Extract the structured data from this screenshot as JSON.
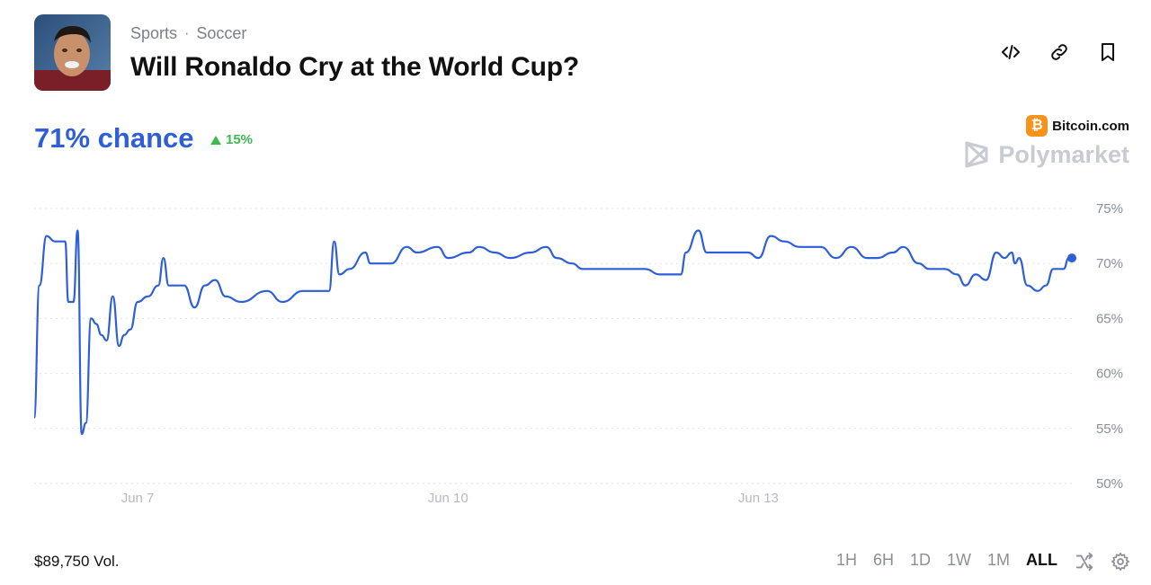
{
  "header": {
    "breadcrumb": [
      "Sports",
      "Soccer"
    ],
    "breadcrumb_separator": "·",
    "title": "Will Ronaldo Cry at the World Cup?",
    "actions": [
      {
        "name": "embed-code-icon",
        "icon": "code"
      },
      {
        "name": "copy-link-icon",
        "icon": "link"
      },
      {
        "name": "bookmark-icon",
        "icon": "bookmark"
      }
    ]
  },
  "market": {
    "chance_text": "71% chance",
    "delta_text": "15%",
    "delta_color": "#3fb950",
    "chance_color": "#2f5fd6"
  },
  "branding": {
    "partner": "Bitcoin.com",
    "partner_coin": "₿",
    "platform": "Polymarket"
  },
  "chart_data": {
    "type": "line",
    "title": "",
    "xlabel": "",
    "ylabel": "",
    "line_color": "#2f5fd6",
    "grid": true,
    "ylim": [
      50,
      75
    ],
    "yticks": [
      "75%",
      "70%",
      "65%",
      "60%",
      "55%",
      "50%"
    ],
    "ytick_values": [
      75,
      70,
      65,
      60,
      55,
      50
    ],
    "xticks": [
      "Jun 7",
      "Jun 10",
      "Jun 13"
    ],
    "xtick_values": [
      7,
      10,
      13
    ],
    "xlim": [
      6.0,
      15.7
    ],
    "series": [
      {
        "values": [
          [
            6.0,
            56.0
          ],
          [
            6.05,
            68.0
          ],
          [
            6.12,
            72.5
          ],
          [
            6.2,
            72.0
          ],
          [
            6.3,
            72.0
          ],
          [
            6.33,
            66.5
          ],
          [
            6.38,
            66.5
          ],
          [
            6.42,
            73.0
          ],
          [
            6.46,
            54.5
          ],
          [
            6.5,
            55.5
          ],
          [
            6.55,
            65.0
          ],
          [
            6.6,
            64.5
          ],
          [
            6.65,
            63.5
          ],
          [
            6.7,
            63.0
          ],
          [
            6.76,
            67.0
          ],
          [
            6.82,
            62.5
          ],
          [
            6.87,
            63.5
          ],
          [
            6.93,
            64.0
          ],
          [
            7.0,
            66.5
          ],
          [
            7.1,
            67.0
          ],
          [
            7.2,
            68.0
          ],
          [
            7.25,
            70.5
          ],
          [
            7.3,
            68.0
          ],
          [
            7.45,
            68.0
          ],
          [
            7.55,
            66.0
          ],
          [
            7.65,
            68.0
          ],
          [
            7.75,
            68.5
          ],
          [
            7.85,
            67.0
          ],
          [
            8.0,
            66.5
          ],
          [
            8.25,
            67.5
          ],
          [
            8.4,
            66.5
          ],
          [
            8.6,
            67.5
          ],
          [
            8.85,
            67.5
          ],
          [
            8.9,
            72.0
          ],
          [
            8.95,
            69.0
          ],
          [
            9.05,
            69.5
          ],
          [
            9.2,
            71.0
          ],
          [
            9.25,
            70.0
          ],
          [
            9.45,
            70.0
          ],
          [
            9.6,
            71.5
          ],
          [
            9.7,
            71.0
          ],
          [
            9.9,
            71.5
          ],
          [
            10.0,
            70.5
          ],
          [
            10.2,
            71.0
          ],
          [
            10.3,
            71.5
          ],
          [
            10.45,
            71.0
          ],
          [
            10.6,
            70.5
          ],
          [
            10.8,
            71.0
          ],
          [
            10.95,
            71.5
          ],
          [
            11.05,
            70.5
          ],
          [
            11.2,
            70.0
          ],
          [
            11.3,
            69.5
          ],
          [
            11.5,
            69.5
          ],
          [
            11.7,
            69.5
          ],
          [
            11.9,
            69.5
          ],
          [
            12.05,
            69.0
          ],
          [
            12.25,
            69.0
          ],
          [
            12.3,
            71.0
          ],
          [
            12.42,
            73.0
          ],
          [
            12.5,
            71.0
          ],
          [
            12.7,
            71.0
          ],
          [
            12.9,
            71.0
          ],
          [
            13.0,
            70.5
          ],
          [
            13.12,
            72.5
          ],
          [
            13.25,
            72.0
          ],
          [
            13.4,
            71.5
          ],
          [
            13.6,
            71.5
          ],
          [
            13.75,
            70.5
          ],
          [
            13.9,
            71.5
          ],
          [
            14.05,
            70.5
          ],
          [
            14.15,
            70.5
          ],
          [
            14.3,
            71.0
          ],
          [
            14.4,
            71.5
          ],
          [
            14.55,
            70.0
          ],
          [
            14.65,
            69.5
          ],
          [
            14.8,
            69.5
          ],
          [
            14.92,
            69.0
          ],
          [
            15.0,
            68.0
          ],
          [
            15.1,
            69.0
          ],
          [
            15.2,
            68.5
          ],
          [
            15.3,
            71.0
          ],
          [
            15.38,
            70.5
          ],
          [
            15.45,
            71.0
          ],
          [
            15.48,
            70.0
          ],
          [
            15.52,
            70.5
          ],
          [
            15.6,
            68.0
          ],
          [
            15.7,
            67.5
          ],
          [
            15.78,
            68.0
          ],
          [
            15.85,
            69.5
          ],
          [
            15.95,
            69.5
          ],
          [
            16.0,
            70.5
          ],
          [
            16.03,
            70.5
          ]
        ]
      }
    ]
  },
  "footer": {
    "volume": "$89,750 Vol.",
    "ranges": [
      "1H",
      "6H",
      "1D",
      "1W",
      "1M",
      "ALL"
    ],
    "active_range": "ALL"
  }
}
